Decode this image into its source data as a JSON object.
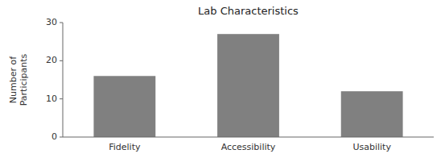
{
  "chart_data": {
    "type": "bar",
    "title": "Lab Characteristics",
    "ylabel": "Number of\nParticipants",
    "categories": [
      "Fidelity",
      "Accessibility",
      "Usability"
    ],
    "values": [
      16,
      27,
      12
    ],
    "color": "#808080",
    "ylim": [
      0,
      30
    ],
    "yticks": [
      0,
      10,
      20,
      30
    ],
    "grid": false
  }
}
